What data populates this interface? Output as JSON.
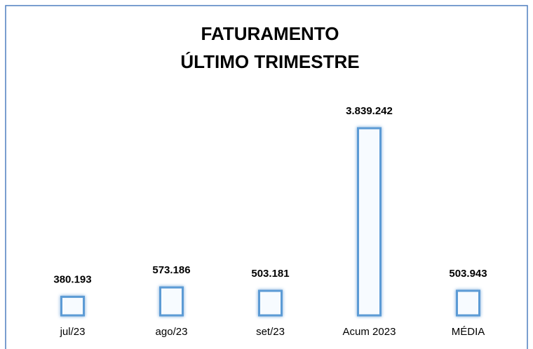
{
  "chart_data": {
    "type": "bar",
    "title": [
      "FATURAMENTO",
      "ÚLTIMO TRIMESTRE"
    ],
    "categories": [
      "jul/23",
      "ago/23",
      "set/23",
      "Acum 2023",
      "MÉDIA"
    ],
    "values": [
      380193,
      573186,
      503181,
      3839242,
      503943
    ],
    "value_labels": [
      "380.193",
      "573.186",
      "503.181",
      "3.839.242",
      "503.943"
    ],
    "color": "#5b9bd5"
  }
}
